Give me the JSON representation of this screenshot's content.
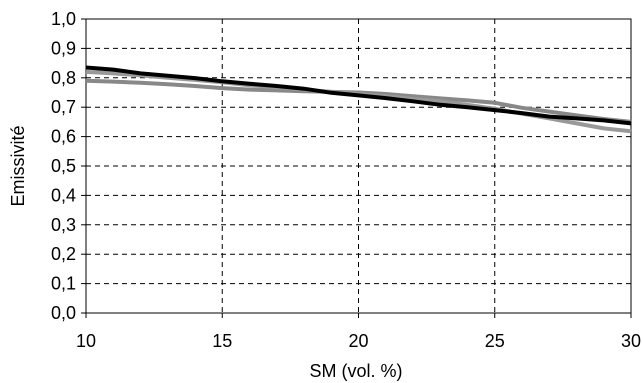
{
  "chart_data": {
    "type": "line",
    "title": "",
    "xlabel": "SM (vol. %)",
    "ylabel": "Emissivité",
    "xlim": [
      10,
      30
    ],
    "ylim": [
      0,
      1
    ],
    "x_ticks": [
      "10",
      "15",
      "20",
      "25",
      "30"
    ],
    "y_ticks": [
      "0,0",
      "0,1",
      "0,2",
      "0,3",
      "0,4",
      "0,5",
      "0,6",
      "0,7",
      "0,8",
      "0,9",
      "1,0"
    ],
    "grid": true,
    "legend": "none",
    "series": [
      {
        "color": "#000000",
        "x": [
          10,
          11,
          12,
          13,
          14,
          15,
          16,
          17,
          18,
          19,
          20,
          21,
          22,
          23,
          24,
          25,
          26,
          27,
          28,
          29,
          30
        ],
        "y": [
          0.835,
          0.828,
          0.815,
          0.807,
          0.799,
          0.788,
          0.78,
          0.772,
          0.763,
          0.749,
          0.74,
          0.731,
          0.72,
          0.708,
          0.7,
          0.69,
          0.68,
          0.668,
          0.662,
          0.655,
          0.645
        ]
      },
      {
        "color": "#999999",
        "x": [
          10,
          11,
          12,
          13,
          14,
          15,
          16,
          17,
          18,
          19,
          20,
          21,
          22,
          23,
          24,
          25,
          26,
          27,
          28,
          29,
          30
        ],
        "y": [
          0.82,
          0.815,
          0.808,
          0.8,
          0.793,
          0.785,
          0.775,
          0.768,
          0.76,
          0.752,
          0.745,
          0.737,
          0.728,
          0.72,
          0.708,
          0.695,
          0.678,
          0.662,
          0.645,
          0.628,
          0.618
        ]
      },
      {
        "color": "#888888",
        "x": [
          10,
          11,
          12,
          13,
          14,
          15,
          16,
          17,
          18,
          19,
          20,
          21,
          22,
          23,
          24,
          25,
          26,
          27,
          28,
          29,
          30
        ],
        "y": [
          0.79,
          0.787,
          0.783,
          0.778,
          0.772,
          0.765,
          0.76,
          0.757,
          0.754,
          0.752,
          0.75,
          0.745,
          0.737,
          0.73,
          0.723,
          0.715,
          0.698,
          0.685,
          0.672,
          0.66,
          0.65
        ]
      }
    ]
  }
}
